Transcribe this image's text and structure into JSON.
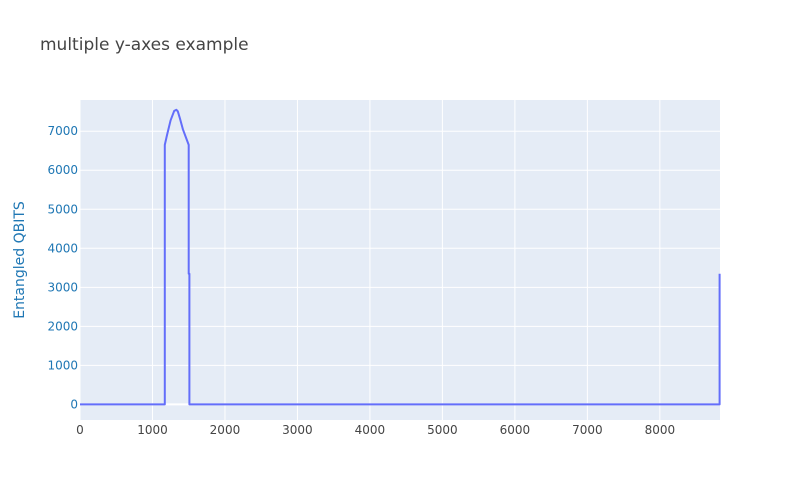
{
  "chart_data": {
    "type": "line",
    "title": "multiple y-axes example",
    "xlabel": "",
    "ylabel": "Entangled QBITS",
    "xlim": [
      0,
      8830
    ],
    "ylim": [
      -400,
      7800
    ],
    "x_ticks": [
      0,
      1000,
      2000,
      3000,
      4000,
      5000,
      6000,
      7000,
      8000
    ],
    "y_ticks": [
      0,
      1000,
      2000,
      3000,
      4000,
      5000,
      6000,
      7000
    ],
    "grid": true,
    "legend": "none",
    "series": [
      {
        "x": [
          0,
          1170,
          1170,
          1200,
          1250,
          1300,
          1330,
          1350,
          1380,
          1420,
          1460,
          1500,
          1500,
          1510,
          1510,
          8825,
          8825
        ],
        "y": [
          0,
          0,
          6650,
          6900,
          7280,
          7520,
          7550,
          7510,
          7320,
          7050,
          6850,
          6650,
          3350,
          3350,
          0,
          0,
          3350
        ]
      }
    ],
    "colors": {
      "plot_bg": "#e5ecf6",
      "grid": "#ffffff",
      "line": "#636efa",
      "axis_label": "#1f77b4",
      "tick_label_y": "#1f77b4",
      "tick_label_x": "#444444"
    }
  }
}
